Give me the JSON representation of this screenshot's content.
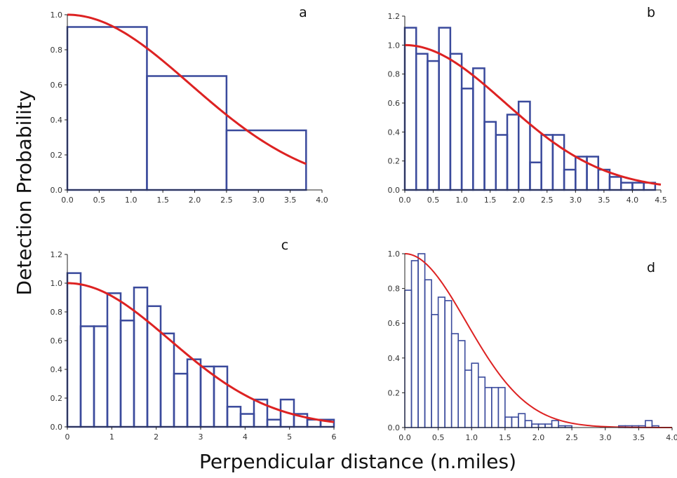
{
  "figure": {
    "ylabel": "Detection Probability",
    "xlabel": "Perpendicular distance (n.miles)",
    "colors": {
      "bars": "#3a4a9c",
      "curve": "#dd2222"
    }
  },
  "chart_data": [
    {
      "type": "bar",
      "panel_label": "a",
      "xlim": [
        0,
        4
      ],
      "ylim": [
        0,
        1
      ],
      "xticks": [
        "0.0",
        "0.5",
        "1.0",
        "1.5",
        "2.0",
        "2.5",
        "3.0",
        "3.5",
        "4.0"
      ],
      "yticks": [
        "0.0",
        "0.2",
        "0.4",
        "0.6",
        "0.8",
        "1.0"
      ],
      "bin_edges": [
        0,
        1.25,
        2.5,
        3.75
      ],
      "values": [
        0.93,
        0.65,
        0.34
      ],
      "curve": {
        "sigma": 1.92,
        "xmax": 3.75
      },
      "grid": false
    },
    {
      "type": "bar",
      "panel_label": "b",
      "xlim": [
        0,
        4.5
      ],
      "ylim": [
        0,
        1.2
      ],
      "xticks": [
        "0.0",
        "0.5",
        "1.0",
        "1.5",
        "2.0",
        "2.5",
        "3.0",
        "3.5",
        "4.0",
        "4.5"
      ],
      "yticks": [
        "0.0",
        "0.2",
        "0.4",
        "0.6",
        "0.8",
        "1.0",
        "1.2"
      ],
      "bin_width": 0.2,
      "values": [
        1.12,
        0.94,
        0.89,
        1.12,
        0.94,
        0.7,
        0.84,
        0.47,
        0.38,
        0.52,
        0.61,
        0.19,
        0.38,
        0.38,
        0.14,
        0.23,
        0.23,
        0.14,
        0.09,
        0.05,
        0.05,
        0.05
      ],
      "curve": {
        "sigma": 1.75,
        "xmax": 4.5
      },
      "grid": false
    },
    {
      "type": "bar",
      "panel_label": "c",
      "xlim": [
        0,
        6
      ],
      "ylim": [
        0,
        1.2
      ],
      "xticks": [
        "0",
        "1",
        "2",
        "3",
        "4",
        "5",
        "6"
      ],
      "yticks": [
        "0.0",
        "0.2",
        "0.4",
        "0.6",
        "0.8",
        "1.0",
        "1.2"
      ],
      "bin_width": 0.3,
      "values": [
        1.07,
        0.7,
        0.7,
        0.93,
        0.74,
        0.97,
        0.84,
        0.65,
        0.37,
        0.47,
        0.42,
        0.42,
        0.14,
        0.09,
        0.19,
        0.05,
        0.19,
        0.09,
        0.05,
        0.05
      ],
      "curve": {
        "sigma": 2.3,
        "xmax": 6
      },
      "grid": false
    },
    {
      "type": "bar",
      "panel_label": "d",
      "xlim": [
        0,
        4
      ],
      "ylim": [
        0,
        1
      ],
      "xticks": [
        "0.0",
        "0.5",
        "1.0",
        "1.5",
        "2.0",
        "2.5",
        "3.0",
        "3.5",
        "4.0"
      ],
      "yticks": [
        "0.0",
        "0.2",
        "0.4",
        "0.6",
        "0.8",
        "1.0"
      ],
      "bin_width": 0.1,
      "values": [
        0.79,
        0.96,
        1.0,
        0.85,
        0.65,
        0.75,
        0.73,
        0.54,
        0.5,
        0.33,
        0.37,
        0.29,
        0.23,
        0.23,
        0.23,
        0.06,
        0.06,
        0.08,
        0.04,
        0.02,
        0.02,
        0.02,
        0.04,
        0.01,
        0.01,
        0.0,
        0.0,
        0.0,
        0.0,
        0.0,
        0.0,
        0.0,
        0.01,
        0.01,
        0.01,
        0.01,
        0.04,
        0.01
      ],
      "curve": {
        "sigma": 0.92,
        "xmax": 4
      },
      "grid": false
    }
  ]
}
